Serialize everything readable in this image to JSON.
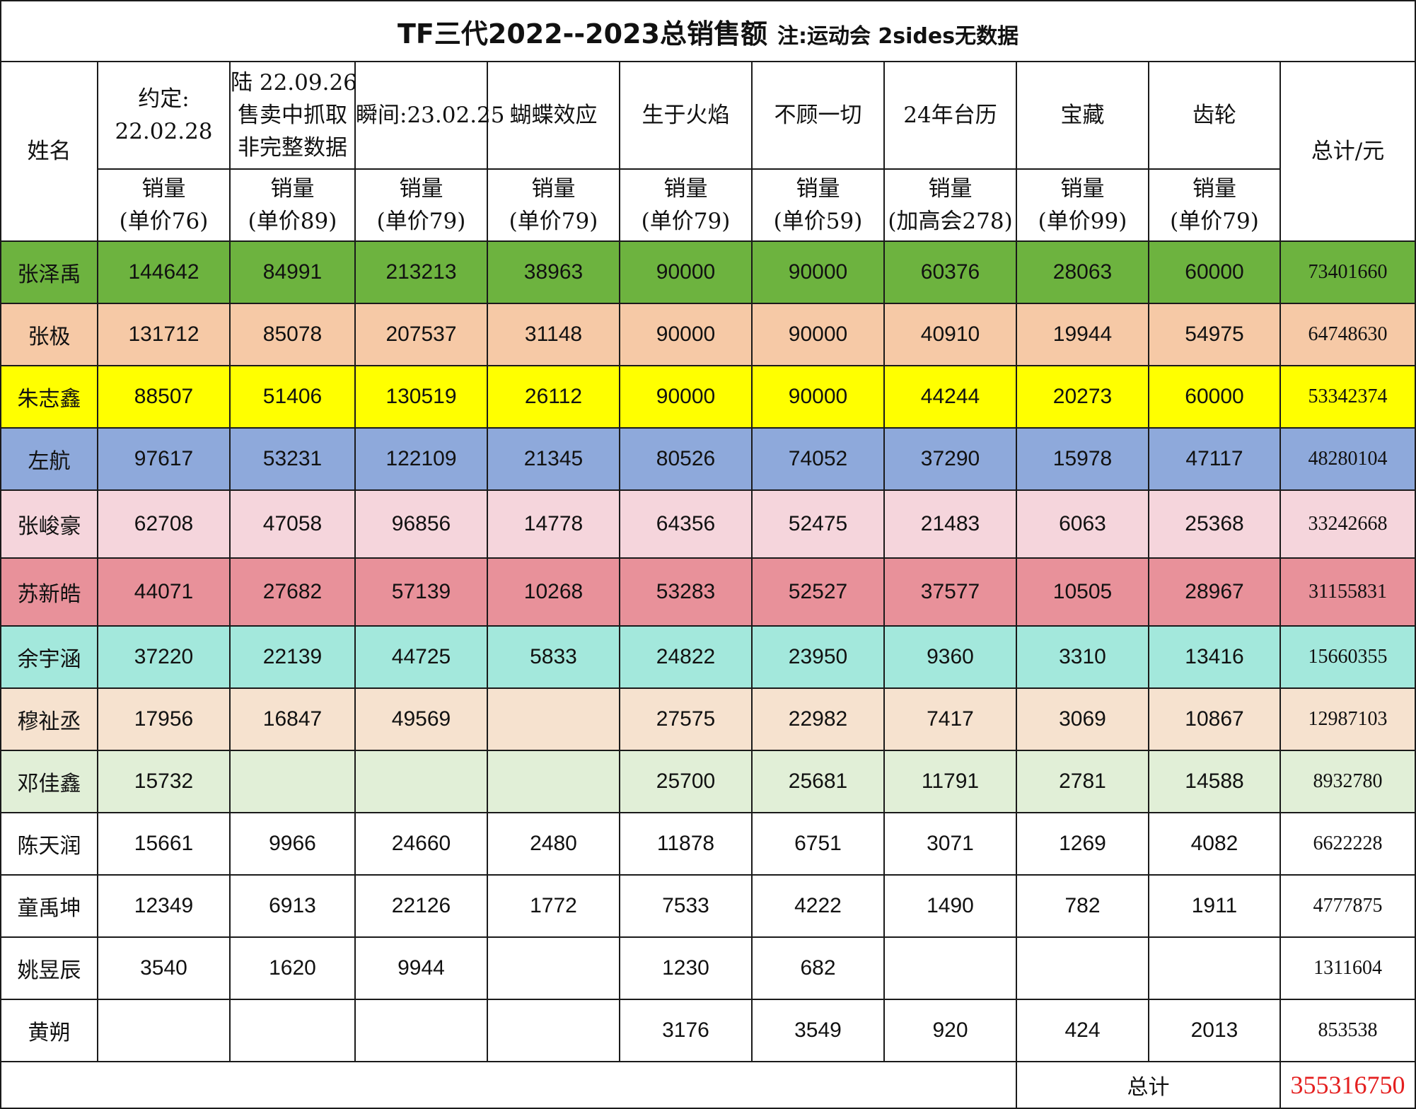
{
  "title": {
    "main": "TF三代2022--2023总销售额",
    "note": "注:运动会 2sides无数据"
  },
  "header": {
    "name_label": "姓名",
    "total_label": "总计/元",
    "columns": [
      {
        "line1": "约定:",
        "line2": "22.02.28",
        "line3": "",
        "sub1": "销量",
        "sub2": "(单价76)"
      },
      {
        "line1": "陆 22.09.26",
        "line2": "售卖中抓取",
        "line3": "非完整数据",
        "sub1": "销量",
        "sub2": "(单价89)"
      },
      {
        "line1": "瞬间:23.02.25",
        "line2": "",
        "line3": "",
        "sub1": "销量",
        "sub2": "(单价79)"
      },
      {
        "line1": "蝴蝶效应",
        "line2": "",
        "line3": "",
        "sub1": "销量",
        "sub2": "(单价79)"
      },
      {
        "line1": "生于火焰",
        "line2": "",
        "line3": "",
        "sub1": "销量",
        "sub2": "(单价79)"
      },
      {
        "line1": "不顾一切",
        "line2": "",
        "line3": "",
        "sub1": "销量",
        "sub2": "(单价59)"
      },
      {
        "line1": "24年台历",
        "line2": "",
        "line3": "",
        "sub1": "销量",
        "sub2": "(加高会278)"
      },
      {
        "line1": "宝藏",
        "line2": "",
        "line3": "",
        "sub1": "销量",
        "sub2": "(单价99)"
      },
      {
        "line1": "齿轮",
        "line2": "",
        "line3": "",
        "sub1": "销量",
        "sub2": "(单价79)"
      }
    ]
  },
  "rows": [
    {
      "name": "张泽禹",
      "bg": "#6db33f",
      "values": [
        "144642",
        "84991",
        "213213",
        "38963",
        "90000",
        "90000",
        "60376",
        "28063",
        "60000"
      ],
      "total": "73401660"
    },
    {
      "name": "张极",
      "bg": "#f6c9a6",
      "values": [
        "131712",
        "85078",
        "207537",
        "31148",
        "90000",
        "90000",
        "40910",
        "19944",
        "54975"
      ],
      "total": "64748630"
    },
    {
      "name": "朱志鑫",
      "bg": "#ffff00",
      "values": [
        "88507",
        "51406",
        "130519",
        "26112",
        "90000",
        "90000",
        "44244",
        "20273",
        "60000"
      ],
      "total": "53342374"
    },
    {
      "name": "左航",
      "bg": "#8ea9db",
      "values": [
        "97617",
        "53231",
        "122109",
        "21345",
        "80526",
        "74052",
        "37290",
        "15978",
        "47117"
      ],
      "total": "48280104"
    },
    {
      "name": "张峻豪",
      "bg": "#f5d5dc",
      "values": [
        "62708",
        "47058",
        "96856",
        "14778",
        "64356",
        "52475",
        "21483",
        "6063",
        "25368"
      ],
      "total": "33242668"
    },
    {
      "name": "苏新皓",
      "bg": "#e8919a",
      "values": [
        "44071",
        "27682",
        "57139",
        "10268",
        "53283",
        "52527",
        "37577",
        "10505",
        "28967"
      ],
      "total": "31155831"
    },
    {
      "name": "余宇涵",
      "bg": "#a3e8dc",
      "values": [
        "37220",
        "22139",
        "44725",
        "5833",
        "24822",
        "23950",
        "9360",
        "3310",
        "13416"
      ],
      "total": "15660355"
    },
    {
      "name": "穆祉丞",
      "bg": "#f6e2cf",
      "values": [
        "17956",
        "16847",
        "49569",
        "",
        "27575",
        "22982",
        "7417",
        "3069",
        "10867"
      ],
      "total": "12987103"
    },
    {
      "name": "邓佳鑫",
      "bg": "#e1efd7",
      "values": [
        "15732",
        "",
        "",
        "",
        "25700",
        "25681",
        "11791",
        "2781",
        "14588"
      ],
      "total": "8932780"
    },
    {
      "name": "陈天润",
      "bg": "#ffffff",
      "values": [
        "15661",
        "9966",
        "24660",
        "2480",
        "11878",
        "6751",
        "3071",
        "1269",
        "4082"
      ],
      "total": "6622228"
    },
    {
      "name": "童禹坤",
      "bg": "#ffffff",
      "values": [
        "12349",
        "6913",
        "22126",
        "1772",
        "7533",
        "4222",
        "1490",
        "782",
        "1911"
      ],
      "total": "4777875"
    },
    {
      "name": "姚昱辰",
      "bg": "#ffffff",
      "values": [
        "3540",
        "1620",
        "9944",
        "",
        "1230",
        "682",
        "",
        "",
        ""
      ],
      "total": "1311604"
    },
    {
      "name": "黄朔",
      "bg": "#ffffff",
      "values": [
        "",
        "",
        "",
        "",
        "3176",
        "3549",
        "920",
        "424",
        "2013"
      ],
      "total": "853538"
    }
  ],
  "grand_total": {
    "label": "总计",
    "value": "355316750",
    "color": "#e41f1f"
  }
}
